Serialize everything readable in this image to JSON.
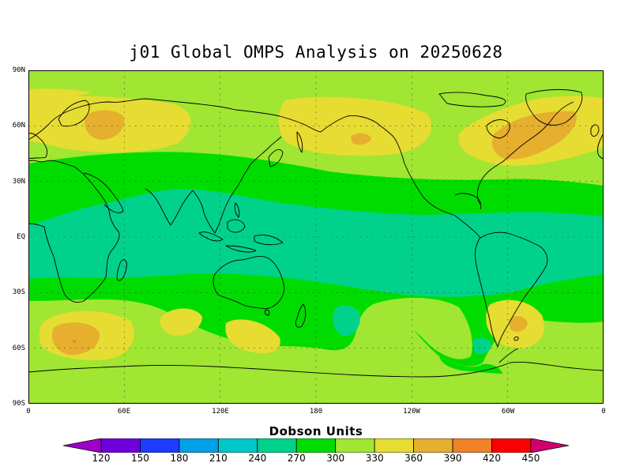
{
  "title": "j01 Global OMPS Analysis on 20250628",
  "map": {
    "projection": "cylindrical-equidistant",
    "lat_ticks": [
      "90N",
      "60N",
      "30N",
      "EQ",
      "30S",
      "60S",
      "90S"
    ],
    "lon_ticks": [
      "0",
      "60E",
      "120E",
      "180",
      "120W",
      "60W",
      "0"
    ],
    "grid": "dotted",
    "coastlines": true
  },
  "colorbar": {
    "title": "Dobson Units",
    "labels": [
      "120",
      "150",
      "180",
      "210",
      "240",
      "270",
      "300",
      "330",
      "360",
      "390",
      "420",
      "450"
    ],
    "colors": [
      "#a000c8",
      "#6e00dc",
      "#1e3cff",
      "#00a0e6",
      "#00c8c8",
      "#00d28c",
      "#00dc00",
      "#a0e632",
      "#e6dc32",
      "#e6af2d",
      "#f08228",
      "#fa0000",
      "#d2006e"
    ]
  },
  "field_colors": {
    "band_270_300": "#00d28c",
    "band_300_330": "#00dc00",
    "band_330_360": "#a0e632",
    "band_360_390": "#e6dc32",
    "band_390_420": "#e6af2d",
    "band_420_450": "#f08228"
  }
}
